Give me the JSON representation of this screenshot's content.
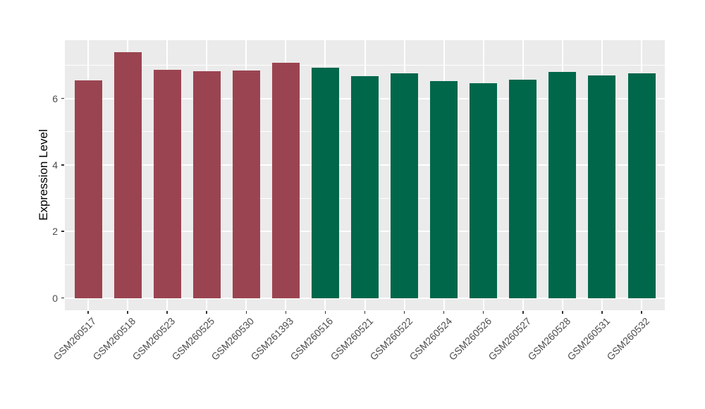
{
  "chart_data": {
    "type": "bar",
    "title": "",
    "xlabel": "",
    "ylabel": "Expression Level",
    "categories": [
      "GSM260517",
      "GSM260518",
      "GSM260523",
      "GSM260525",
      "GSM260530",
      "GSM261393",
      "GSM260516",
      "GSM260521",
      "GSM260522",
      "GSM260524",
      "GSM260526",
      "GSM260527",
      "GSM260528",
      "GSM260531",
      "GSM260532"
    ],
    "values": [
      6.55,
      7.38,
      6.85,
      6.82,
      6.84,
      7.07,
      6.93,
      6.66,
      6.75,
      6.51,
      6.46,
      6.56,
      6.8,
      6.68,
      6.76
    ],
    "groups": [
      "group-1",
      "group-1",
      "group-1",
      "group-1",
      "group-1",
      "group-1",
      "group-2",
      "group-2",
      "group-2",
      "group-2",
      "group-2",
      "group-2",
      "group-2",
      "group-2",
      "group-2"
    ],
    "group_colors": {
      "group-1": "#9B4451",
      "group-2": "#00674B"
    },
    "y_ticks": [
      0,
      2,
      4,
      6
    ],
    "y_minor_ticks": [
      1,
      3,
      5,
      7
    ],
    "ylim": [
      -0.37,
      7.75
    ],
    "legend": "none",
    "grid": "on",
    "colors": {
      "panel_background": "#EBEBEB",
      "figure_background": "#FFFFFF",
      "gridline": "#FFFFFF",
      "axis_text": "#4D4D4D",
      "axis_title": "#000000",
      "tick_mark": "#333333"
    }
  }
}
